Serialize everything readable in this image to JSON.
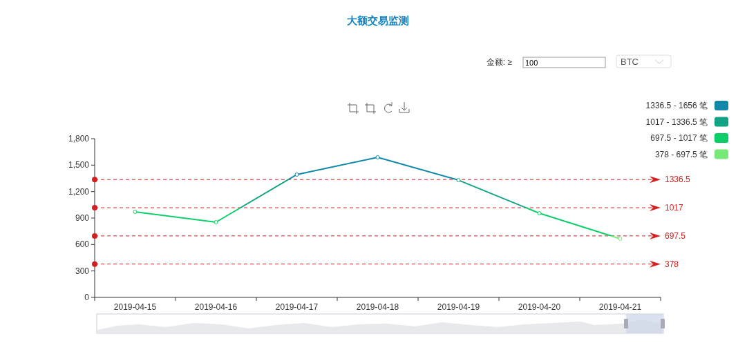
{
  "chart_data": {
    "type": "line",
    "title": "大额交易监测",
    "categories": [
      "2019-04-15",
      "2019-04-16",
      "2019-04-17",
      "2019-04-18",
      "2019-04-19",
      "2019-04-20",
      "2019-04-21"
    ],
    "series": [
      {
        "values": [
          970,
          853,
          1393,
          1589,
          1330,
          955,
          665
        ],
        "colors": [
          "#0ccf6a",
          "#0ccf6a",
          "#1188a8",
          "#1188a8",
          "#11a383",
          "#0ccf6a",
          "#78e878"
        ]
      }
    ],
    "ylim": [
      0,
      1800
    ],
    "yticks": [
      0,
      300,
      600,
      900,
      {
        "value": 1200,
        "label": "1,200"
      },
      {
        "value": 1500,
        "label": "1,500"
      },
      {
        "value": 1800,
        "label": "1,800"
      }
    ],
    "ref_lines": [
      {
        "axis": "y",
        "value": 1336.5,
        "label": "1336.5",
        "color": "#d42020",
        "line_style": "dashed"
      },
      {
        "axis": "y",
        "value": 1017,
        "label": "1017",
        "color": "#d42020",
        "line_style": "dashed"
      },
      {
        "axis": "y",
        "value": 697.5,
        "label": "697.5",
        "color": "#d42020",
        "line_style": "dashed"
      },
      {
        "axis": "y",
        "value": 378,
        "label": "378",
        "color": "#d42020",
        "line_style": "dashed"
      }
    ],
    "annotations": [
      "金额: ≥",
      "100",
      "BTC",
      "1336.5 - 1656 笔",
      "1017 - 1336.5 笔",
      "697.5 - 1017 笔",
      "378 - 697.5 笔"
    ],
    "marker": "circle",
    "line_style": "solid",
    "grid": false
  }
}
